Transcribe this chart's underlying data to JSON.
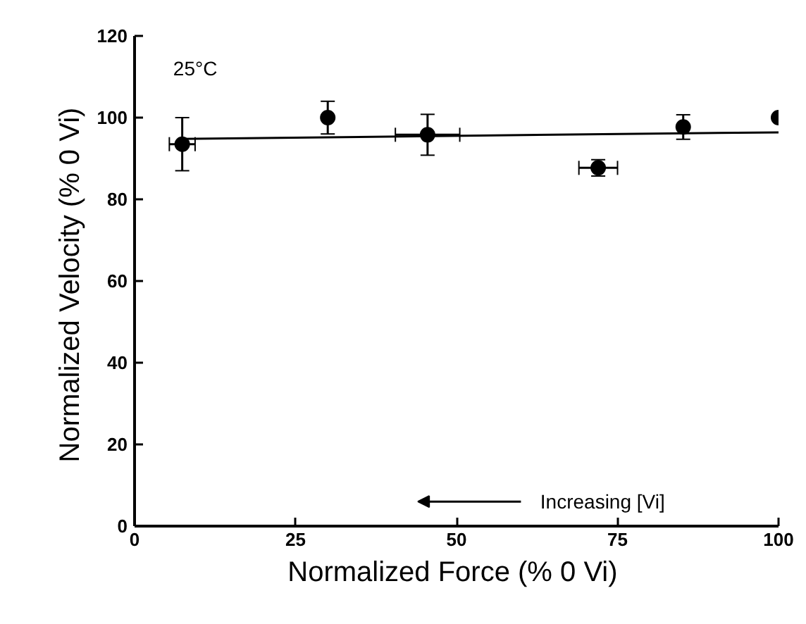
{
  "chart_data": {
    "type": "scatter",
    "xlabel": "Normalized Force  (% 0 Vi)",
    "ylabel": "Normalized Velocity  (% 0 Vi)",
    "annotations": [
      "25°C",
      "Increasing    [Vi]"
    ],
    "xlim": [
      0,
      100
    ],
    "ylim": [
      0,
      120
    ],
    "xticks": [
      0,
      25,
      50,
      75,
      100
    ],
    "yticks": [
      0,
      20,
      40,
      60,
      80,
      100,
      120
    ],
    "marker": "circle",
    "grid": false,
    "series": [
      {
        "color": "#000000",
        "x": [
          7.4,
          30,
          45.5,
          72,
          85.2,
          100
        ],
        "values": [
          93.5,
          100,
          95.8,
          87.7,
          97.7,
          100
        ],
        "errors": [
          6.5,
          4,
          5,
          2,
          3,
          null
        ],
        "xerrors": [
          2,
          null,
          5,
          3,
          null,
          null
        ]
      },
      {
        "type": "line",
        "color": "#000000",
        "x": [
          7,
          100
        ],
        "values": [
          94.8,
          96.4
        ],
        "marker": "none"
      }
    ]
  }
}
